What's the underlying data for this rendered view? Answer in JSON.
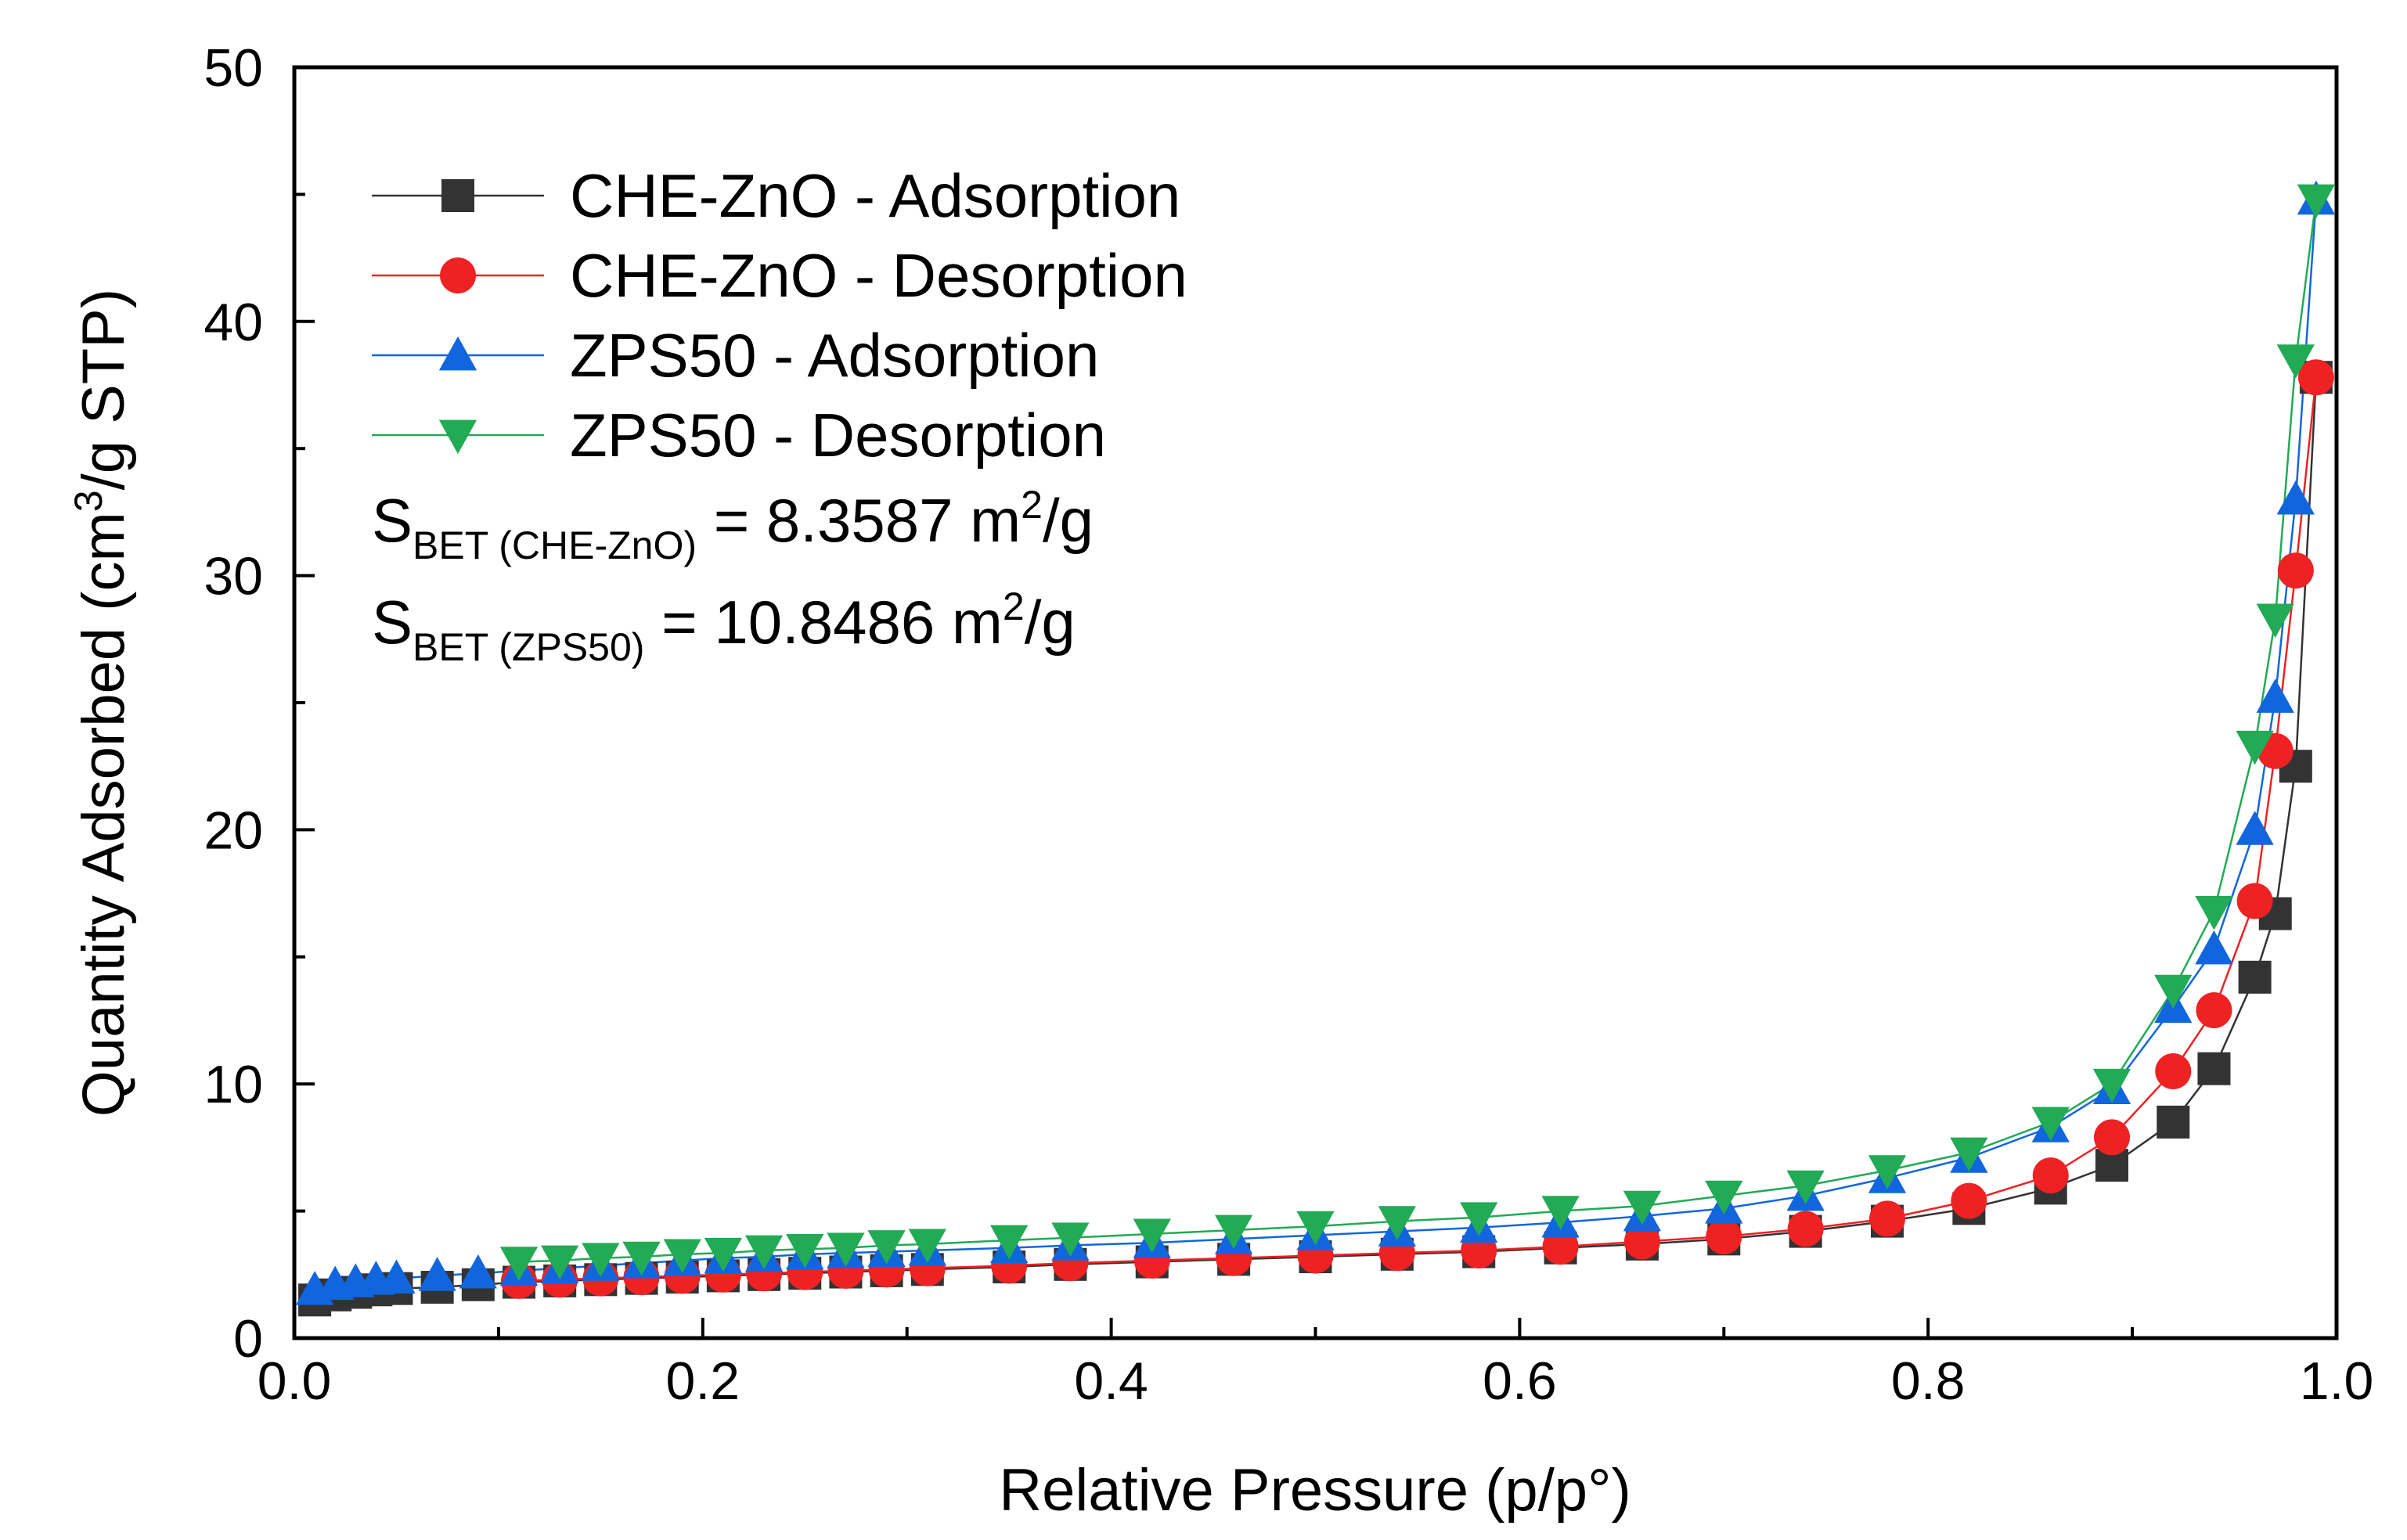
{
  "chart_data": {
    "type": "scatter",
    "title": "",
    "xlabel": "Relative Pressure (p/p°)",
    "ylabel_prefix": "Quantity Adsorbed (cm",
    "ylabel_sup": "3",
    "ylabel_suffix": "/g STP)",
    "xlim": [
      0.0,
      1.0
    ],
    "ylim": [
      0,
      50
    ],
    "xticks": [
      "0.0",
      "0.2",
      "0.4",
      "0.6",
      "0.8",
      "1.0"
    ],
    "xtick_values": [
      0.0,
      0.2,
      0.4,
      0.6,
      0.8,
      1.0
    ],
    "yticks": [
      "0",
      "10",
      "20",
      "30",
      "40",
      "50"
    ],
    "ytick_values": [
      0,
      10,
      20,
      30,
      40,
      50
    ],
    "grid": false,
    "legend_position": "top-left",
    "series": [
      {
        "name": "CHE-ZnO - Adsorption",
        "color": "#333333",
        "marker": "square",
        "x": [
          0.01,
          0.02,
          0.03,
          0.04,
          0.05,
          0.07,
          0.09,
          0.11,
          0.13,
          0.15,
          0.17,
          0.19,
          0.21,
          0.23,
          0.25,
          0.27,
          0.29,
          0.31,
          0.35,
          0.38,
          0.42,
          0.46,
          0.5,
          0.54,
          0.58,
          0.62,
          0.66,
          0.7,
          0.74,
          0.78,
          0.82,
          0.86,
          0.89,
          0.92,
          0.94,
          0.96,
          0.97,
          0.98,
          0.99
        ],
        "y": [
          1.5,
          1.7,
          1.8,
          1.9,
          1.95,
          2.0,
          2.1,
          2.2,
          2.25,
          2.3,
          2.35,
          2.4,
          2.45,
          2.5,
          2.55,
          2.6,
          2.65,
          2.7,
          2.8,
          2.9,
          3.0,
          3.1,
          3.2,
          3.3,
          3.4,
          3.55,
          3.7,
          3.9,
          4.2,
          4.6,
          5.1,
          5.9,
          6.8,
          8.5,
          10.6,
          14.2,
          16.7,
          22.5,
          37.8
        ]
      },
      {
        "name": "CHE-ZnO - Desorption",
        "color": "#ee2222",
        "marker": "circle",
        "x": [
          0.99,
          0.98,
          0.97,
          0.96,
          0.94,
          0.92,
          0.89,
          0.86,
          0.82,
          0.78,
          0.74,
          0.7,
          0.66,
          0.62,
          0.58,
          0.54,
          0.5,
          0.46,
          0.42,
          0.38,
          0.35,
          0.31,
          0.29,
          0.27,
          0.25,
          0.23,
          0.21,
          0.19,
          0.17,
          0.15,
          0.13,
          0.11
        ],
        "y": [
          37.8,
          30.2,
          23.1,
          17.2,
          12.9,
          10.5,
          7.9,
          6.4,
          5.4,
          4.7,
          4.3,
          4.0,
          3.8,
          3.6,
          3.45,
          3.35,
          3.25,
          3.15,
          3.05,
          2.95,
          2.85,
          2.75,
          2.7,
          2.65,
          2.6,
          2.55,
          2.5,
          2.45,
          2.4,
          2.35,
          2.3,
          2.25
        ]
      },
      {
        "name": "ZPS50 - Adsorption",
        "color": "#1166dd",
        "marker": "triangle-up",
        "x": [
          0.01,
          0.02,
          0.03,
          0.04,
          0.05,
          0.07,
          0.09,
          0.11,
          0.13,
          0.15,
          0.17,
          0.19,
          0.21,
          0.23,
          0.25,
          0.27,
          0.29,
          0.31,
          0.35,
          0.38,
          0.42,
          0.46,
          0.5,
          0.54,
          0.58,
          0.62,
          0.66,
          0.7,
          0.74,
          0.78,
          0.82,
          0.86,
          0.89,
          0.92,
          0.94,
          0.96,
          0.97,
          0.98,
          0.99
        ],
        "y": [
          1.9,
          2.1,
          2.2,
          2.3,
          2.35,
          2.45,
          2.55,
          2.65,
          2.75,
          2.85,
          2.95,
          3.05,
          3.15,
          3.2,
          3.3,
          3.35,
          3.4,
          3.45,
          3.55,
          3.65,
          3.75,
          3.9,
          4.05,
          4.2,
          4.35,
          4.55,
          4.8,
          5.1,
          5.6,
          6.3,
          7.1,
          8.3,
          9.8,
          13.0,
          15.3,
          20.0,
          25.2,
          33.0,
          44.8
        ]
      },
      {
        "name": "ZPS50 - Desorption",
        "color": "#22aa55",
        "marker": "triangle-down",
        "x": [
          0.99,
          0.98,
          0.97,
          0.96,
          0.94,
          0.92,
          0.89,
          0.86,
          0.82,
          0.78,
          0.74,
          0.7,
          0.66,
          0.62,
          0.58,
          0.54,
          0.5,
          0.46,
          0.42,
          0.38,
          0.35,
          0.31,
          0.29,
          0.27,
          0.25,
          0.23,
          0.21,
          0.19,
          0.17,
          0.15,
          0.13,
          0.11
        ],
        "y": [
          44.8,
          38.5,
          28.3,
          23.3,
          16.8,
          13.7,
          10.0,
          8.5,
          7.3,
          6.6,
          6.0,
          5.6,
          5.2,
          5.0,
          4.75,
          4.6,
          4.4,
          4.25,
          4.1,
          3.95,
          3.85,
          3.7,
          3.65,
          3.55,
          3.5,
          3.45,
          3.35,
          3.3,
          3.2,
          3.15,
          3.05,
          3.0
        ]
      }
    ],
    "annotations": [
      {
        "prefix": "S",
        "sub": "BET (CHE-ZnO)",
        "middle": " = 8.3587 m",
        "sup": "2",
        "suffix": "/g"
      },
      {
        "prefix": "S",
        "sub": "BET (ZPS50)",
        "middle": " = 10.8486 m",
        "sup": "2",
        "suffix": "/g"
      }
    ]
  }
}
